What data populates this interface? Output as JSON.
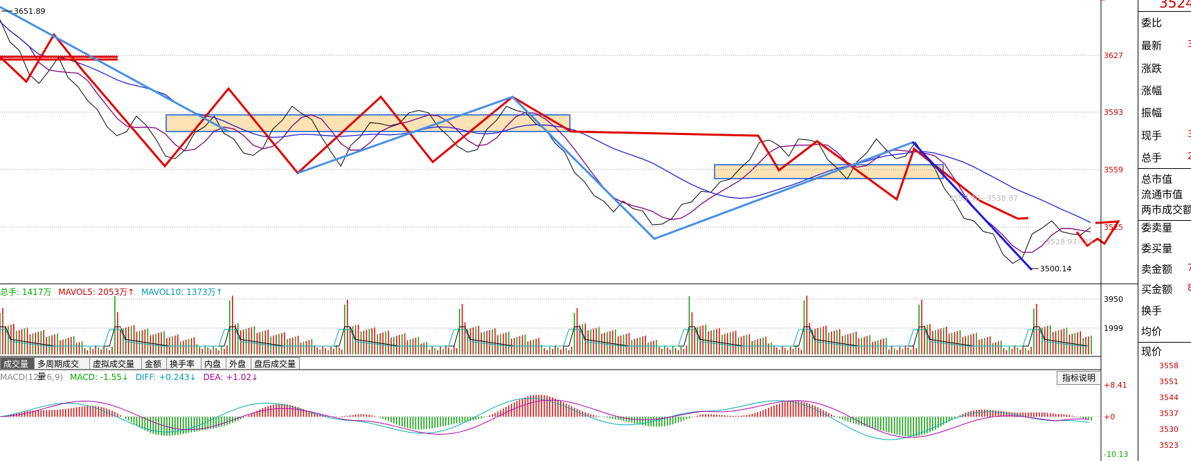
{
  "price_axis": {
    "ticks": [
      "3627",
      "3593",
      "3559",
      "3525"
    ],
    "high_label": "3651.89",
    "low_label": "3500.14",
    "overlay_range": "3553.90~3538.87",
    "overlay_range2": "3528.97~35"
  },
  "volume": {
    "legend": {
      "total": "总手: 1417万",
      "mavol5": "MAVOL5: 2053万↑",
      "mavol10": "MAVOL10: 1373万↑"
    },
    "ticks": [
      "3950",
      "1999"
    ]
  },
  "tabs": [
    "成交量",
    "多周期成交量",
    "虚拟成交量",
    "金额",
    "换手率",
    "内盘",
    "外盘",
    "盘后成交量"
  ],
  "macd": {
    "legend": {
      "name": "MACD(12,26,9)",
      "macd": "MACD: -1.55↓",
      "diff": "DIFF: +0.243↓",
      "dea": "DEA: +1.02↓"
    },
    "ticks": [
      "+8.41",
      "+0",
      "-10.13"
    ],
    "button": "指标说明"
  },
  "side_panel": {
    "top_value": "3524.",
    "rows": [
      {
        "label": "委比",
        "value": ""
      },
      {
        "label": "最新",
        "value": "3"
      },
      {
        "label": "涨跌",
        "value": ""
      },
      {
        "label": "涨幅",
        "value": ""
      },
      {
        "label": "振幅",
        "value": ""
      },
      {
        "label": "现手",
        "value": "3"
      },
      {
        "label": "总手",
        "value": "2"
      },
      {
        "label": "总市值",
        "value": ""
      },
      {
        "label": "流通市值",
        "value": ""
      },
      {
        "label": "两市成交额",
        "value": ""
      },
      {
        "label": "委卖量",
        "value": ""
      },
      {
        "label": "委买量",
        "value": ""
      },
      {
        "label": "卖金额",
        "value": "7"
      },
      {
        "label": "买金额",
        "value": "8"
      },
      {
        "label": "换手",
        "value": ""
      },
      {
        "label": "均价",
        "value": ""
      },
      {
        "label": "现价",
        "value": ""
      }
    ],
    "mini_ticks": [
      "3558",
      "3551",
      "3544",
      "3537",
      "3530",
      "3523"
    ]
  },
  "colors": {
    "up": "#e00000",
    "down": "#00a000",
    "ma_blue": "#2020d0",
    "ma_purple": "#800080",
    "trend_red": "#e00000",
    "trend_blue": "#4a90e2",
    "band_fill": "#fde2b5"
  },
  "chart_data": {
    "type": "line",
    "title": "",
    "ylim": [
      3495,
      3660
    ],
    "price_extremes": {
      "high": 3651.89,
      "low": 3500.14
    },
    "series": [
      {
        "values": [
          3651,
          3640,
          3632,
          3620,
          3612,
          3622,
          3628,
          3618,
          3610,
          3604,
          3596,
          3588,
          3580,
          3585,
          3592,
          3589,
          3578,
          3570,
          3566,
          3574,
          3582,
          3588,
          3592,
          3584,
          3578,
          3572,
          3568,
          3575,
          3584,
          3592,
          3598,
          3596,
          3590,
          3582,
          3570,
          3564,
          3574,
          3582,
          3588,
          3590,
          3586,
          3590,
          3594,
          3598,
          3594,
          3588,
          3580,
          3576,
          3570,
          3574,
          3584,
          3592,
          3598,
          3598,
          3594,
          3590,
          3584,
          3578,
          3570,
          3560,
          3552,
          3546,
          3540,
          3536,
          3540,
          3538,
          3534,
          3528,
          3526,
          3532,
          3538,
          3542,
          3546,
          3548,
          3552,
          3556,
          3560,
          3568,
          3576,
          3580,
          3574,
          3570,
          3578,
          3580,
          3576,
          3568,
          3560,
          3556,
          3564,
          3572,
          3578,
          3574,
          3566,
          3570,
          3576,
          3570,
          3560,
          3550,
          3540,
          3532,
          3528,
          3524,
          3520,
          3510,
          3502,
          3508,
          3520,
          3526,
          3528,
          3524,
          3520,
          3522,
          3524
        ]
      }
    ],
    "volume_ylim": [
      0,
      3950
    ],
    "macd_ylim": [
      -10.13,
      8.41
    ]
  }
}
